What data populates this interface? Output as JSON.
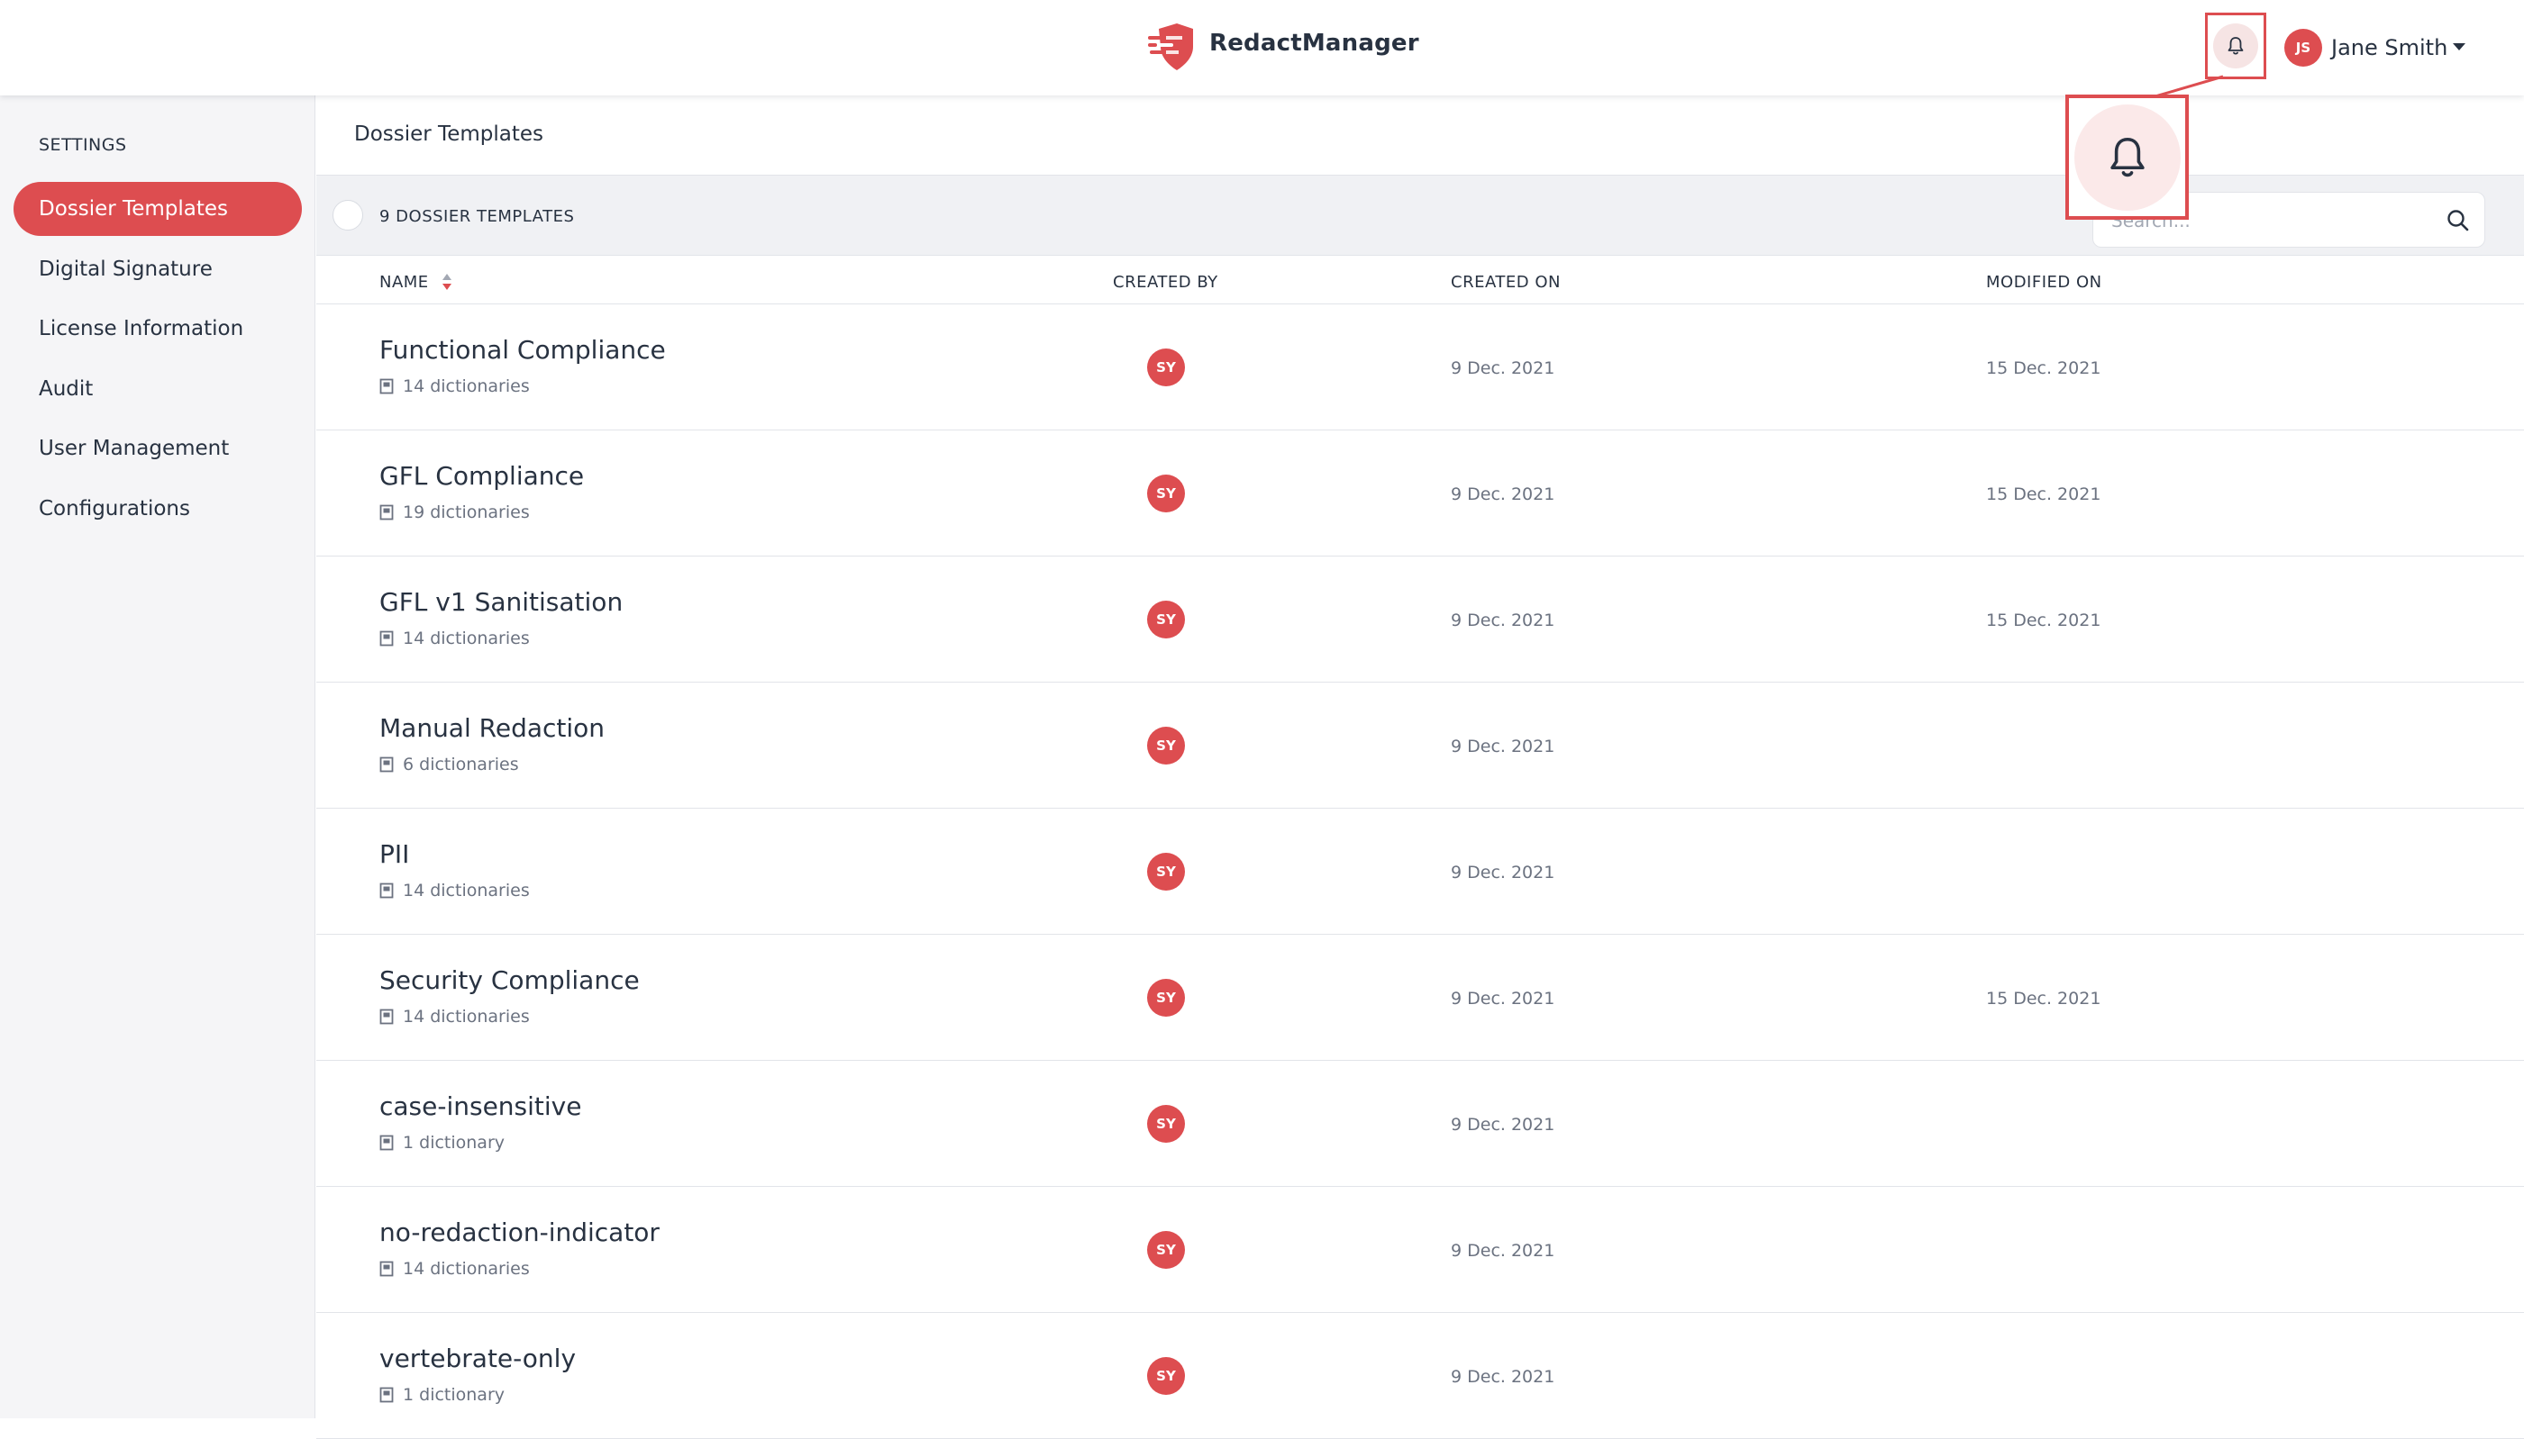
{
  "header": {
    "app_title": "RedactManager",
    "user": {
      "initials": "JS",
      "name": "Jane Smith"
    }
  },
  "colors": {
    "accent": "#dd4d50",
    "text": "#283241",
    "muted": "#6b7280",
    "sidebar_bg": "#f5f5f7",
    "toolbar_bg": "#f0f1f4"
  },
  "sidebar": {
    "heading": "SETTINGS",
    "items": [
      {
        "label": "Dossier Templates",
        "active": true
      },
      {
        "label": "Digital Signature",
        "active": false
      },
      {
        "label": "License Information",
        "active": false
      },
      {
        "label": "Audit",
        "active": false
      },
      {
        "label": "User Management",
        "active": false
      },
      {
        "label": "Configurations",
        "active": false
      }
    ]
  },
  "main": {
    "title": "Dossier Templates",
    "count_label": "9 DOSSIER TEMPLATES",
    "search": {
      "placeholder": "Search...",
      "value": ""
    },
    "columns": [
      "NAME",
      "CREATED BY",
      "CREATED ON",
      "MODIFIED ON"
    ],
    "rows": [
      {
        "name": "Functional Compliance",
        "dictionaries": "14 dictionaries",
        "created_by": "SY",
        "created_on": "9 Dec. 2021",
        "modified_on": "15 Dec. 2021"
      },
      {
        "name": "GFL Compliance",
        "dictionaries": "19 dictionaries",
        "created_by": "SY",
        "created_on": "9 Dec. 2021",
        "modified_on": "15 Dec. 2021"
      },
      {
        "name": "GFL v1 Sanitisation",
        "dictionaries": "14 dictionaries",
        "created_by": "SY",
        "created_on": "9 Dec. 2021",
        "modified_on": "15 Dec. 2021"
      },
      {
        "name": "Manual Redaction",
        "dictionaries": "6 dictionaries",
        "created_by": "SY",
        "created_on": "9 Dec. 2021",
        "modified_on": ""
      },
      {
        "name": "PII",
        "dictionaries": "14 dictionaries",
        "created_by": "SY",
        "created_on": "9 Dec. 2021",
        "modified_on": ""
      },
      {
        "name": "Security Compliance",
        "dictionaries": "14 dictionaries",
        "created_by": "SY",
        "created_on": "9 Dec. 2021",
        "modified_on": "15 Dec. 2021"
      },
      {
        "name": "case-insensitive",
        "dictionaries": "1 dictionary",
        "created_by": "SY",
        "created_on": "9 Dec. 2021",
        "modified_on": ""
      },
      {
        "name": "no-redaction-indicator",
        "dictionaries": "14 dictionaries",
        "created_by": "SY",
        "created_on": "9 Dec. 2021",
        "modified_on": ""
      },
      {
        "name": "vertebrate-only",
        "dictionaries": "1 dictionary",
        "created_by": "SY",
        "created_on": "9 Dec. 2021",
        "modified_on": ""
      }
    ]
  }
}
